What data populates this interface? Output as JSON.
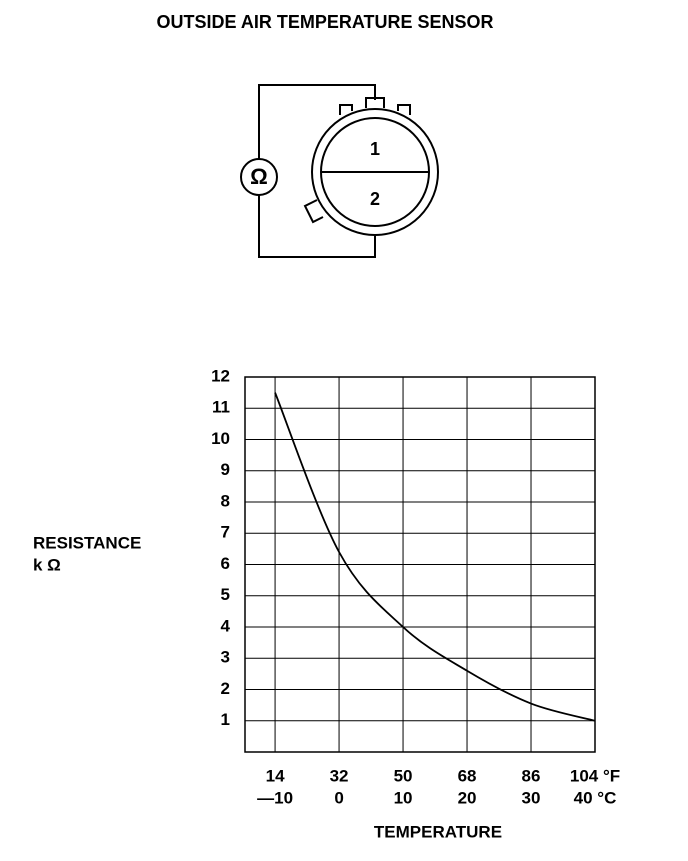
{
  "title": "OUTSIDE AIR TEMPERATURE SENSOR",
  "diagram": {
    "meter": "Ω",
    "pins": [
      "1",
      "2"
    ]
  },
  "chart_data": {
    "type": "line",
    "y_label": [
      "RESISTANCE",
      "k Ω"
    ],
    "x_label": "TEMPERATURE",
    "x": [
      -10,
      0,
      10,
      20,
      30,
      40
    ],
    "values": [
      11.5,
      6.4,
      4.0,
      2.6,
      1.55,
      1.0
    ],
    "color": "#000000",
    "xlim": [
      -14.7,
      40
    ],
    "ylim": [
      0,
      12
    ],
    "xticks": [
      {
        "value": -10,
        "label": "—10"
      },
      0,
      10,
      20,
      30,
      {
        "value": 40,
        "label": "40 °C"
      }
    ],
    "xtick_labels_f": [
      "14",
      "32",
      "50",
      "68",
      "86",
      "104 °F"
    ],
    "yticks": [
      1,
      2,
      3,
      4,
      5,
      6,
      7,
      8,
      9,
      10,
      11,
      12
    ],
    "grid": true
  }
}
